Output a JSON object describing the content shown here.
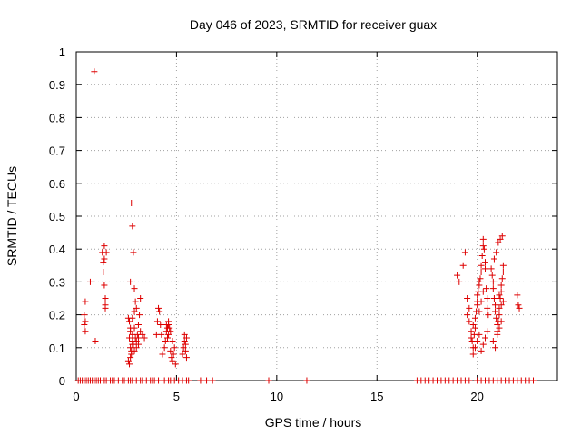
{
  "chart_data": {
    "type": "scatter",
    "title": "Day 046 of 2023, SRMTID for receiver guax",
    "xlabel": "GPS time / hours",
    "ylabel": "SRMTID / TECUs",
    "xlim": [
      0,
      24
    ],
    "ylim": [
      0,
      1
    ],
    "xticks": [
      0,
      5,
      10,
      15,
      20
    ],
    "yticks": [
      0,
      0.1,
      0.2,
      0.3,
      0.4,
      0.5,
      0.6,
      0.7,
      0.8,
      0.9,
      1
    ],
    "ytick_labels": [
      "0",
      "0.1",
      "0.2",
      "0.3",
      "0.4",
      "0.5",
      "0.6",
      "0.7",
      "0.8",
      "0.9",
      "1"
    ],
    "grid": true,
    "marker": "+",
    "color": "#dd0000",
    "series": [
      {
        "name": "SRMTID",
        "x": [
          0.1,
          0.2,
          0.3,
          0.4,
          0.5,
          0.6,
          0.7,
          0.8,
          0.9,
          1.0,
          1.1,
          1.2,
          1.4,
          1.5,
          1.7,
          1.8,
          1.9,
          2.1,
          2.3,
          2.4,
          2.6,
          2.7,
          2.8,
          3.0,
          3.2,
          3.3,
          3.5,
          3.7,
          3.8,
          3.9,
          4.1,
          4.4,
          4.6,
          4.7,
          4.9,
          5.1,
          5.3,
          5.5,
          5.6,
          6.2,
          6.5,
          6.8,
          9.6,
          11.5,
          17.0,
          17.2,
          17.4,
          17.6,
          17.8,
          18.0,
          18.2,
          18.4,
          18.6,
          18.8,
          19.0,
          19.2,
          19.4,
          19.6,
          20.0,
          20.2,
          20.4,
          20.6,
          20.8,
          21.0,
          21.2,
          21.4,
          21.6,
          21.8,
          22.0,
          22.2,
          22.4,
          22.6,
          22.8,
          0.4,
          0.4,
          0.45,
          0.45,
          0.45,
          0.7,
          0.9,
          0.95,
          1.3,
          1.35,
          1.4,
          1.4,
          1.45,
          1.45,
          1.5,
          1.35,
          1.4,
          1.45,
          2.6,
          2.65,
          2.7,
          2.7,
          2.75,
          2.8,
          2.8,
          2.85,
          2.9,
          2.9,
          2.95,
          3.0,
          3.0,
          3.05,
          3.1,
          3.1,
          3.2,
          3.3,
          3.4,
          2.65,
          2.7,
          2.75,
          2.8,
          2.85,
          2.9,
          2.95,
          3.0,
          2.6,
          2.65,
          2.7,
          2.75,
          2.8,
          3.1,
          3.15,
          3.2,
          2.7,
          2.8,
          2.9,
          4.0,
          4.05,
          4.1,
          4.15,
          4.2,
          4.25,
          4.3,
          4.4,
          4.45,
          4.5,
          4.5,
          4.55,
          4.55,
          4.6,
          4.6,
          4.65,
          4.7,
          4.75,
          4.8,
          4.85,
          4.9,
          4.95,
          4.6,
          4.7,
          4.8,
          5.3,
          5.35,
          5.4,
          5.4,
          5.45,
          5.45,
          5.5,
          5.5,
          19.0,
          19.1,
          19.3,
          19.4,
          19.5,
          19.5,
          19.6,
          19.6,
          19.7,
          19.7,
          19.75,
          19.8,
          19.8,
          19.85,
          19.9,
          19.9,
          19.95,
          20.0,
          20.0,
          20.0,
          20.05,
          20.1,
          20.1,
          20.15,
          20.2,
          20.2,
          20.25,
          20.3,
          20.3,
          20.35,
          20.4,
          20.4,
          20.45,
          20.5,
          20.5,
          20.55,
          19.8,
          19.9,
          20.0,
          20.1,
          20.2,
          20.3,
          20.4,
          20.5,
          20.1,
          20.2,
          20.3,
          20.7,
          20.75,
          20.8,
          20.8,
          20.85,
          20.9,
          20.9,
          20.95,
          21.0,
          21.0,
          21.05,
          21.1,
          21.1,
          21.15,
          21.2,
          21.2,
          21.25,
          21.3,
          21.3,
          20.8,
          20.9,
          21.0,
          21.1,
          21.2,
          20.85,
          20.95,
          21.05,
          21.15,
          21.25,
          21.1,
          21.2,
          21.3,
          22.0,
          22.05,
          22.1
        ],
        "y": [
          0,
          0,
          0,
          0,
          0,
          0,
          0,
          0,
          0,
          0,
          0,
          0,
          0,
          0,
          0,
          0,
          0,
          0,
          0,
          0,
          0,
          0,
          0,
          0,
          0,
          0,
          0,
          0,
          0,
          0,
          0,
          0,
          0,
          0,
          0,
          0,
          0,
          0,
          0,
          0,
          0,
          0,
          0,
          0,
          0,
          0,
          0,
          0,
          0,
          0,
          0,
          0,
          0,
          0,
          0,
          0,
          0,
          0,
          0,
          0,
          0,
          0,
          0,
          0,
          0,
          0,
          0,
          0,
          0,
          0,
          0,
          0,
          0,
          0.17,
          0.2,
          0.24,
          0.18,
          0.15,
          0.3,
          0.94,
          0.12,
          0.39,
          0.36,
          0.41,
          0.29,
          0.22,
          0.25,
          0.39,
          0.33,
          0.37,
          0.23,
          0.19,
          0.13,
          0.1,
          0.15,
          0.08,
          0.12,
          0.14,
          0.11,
          0.09,
          0.16,
          0.13,
          0.1,
          0.12,
          0.14,
          0.11,
          0.13,
          0.15,
          0.14,
          0.13,
          0.18,
          0.3,
          0.54,
          0.47,
          0.39,
          0.28,
          0.24,
          0.22,
          0.06,
          0.05,
          0.07,
          0.09,
          0.11,
          0.17,
          0.2,
          0.25,
          0.16,
          0.19,
          0.21,
          0.14,
          0.18,
          0.22,
          0.21,
          0.17,
          0.14,
          0.08,
          0.1,
          0.12,
          0.15,
          0.17,
          0.16,
          0.13,
          0.14,
          0.18,
          0.16,
          0.09,
          0.07,
          0.06,
          0.08,
          0.1,
          0.05,
          0.17,
          0.15,
          0.12,
          0.08,
          0.1,
          0.12,
          0.14,
          0.09,
          0.11,
          0.13,
          0.07,
          0.32,
          0.3,
          0.35,
          0.39,
          0.25,
          0.2,
          0.22,
          0.18,
          0.15,
          0.13,
          0.12,
          0.1,
          0.17,
          0.14,
          0.16,
          0.19,
          0.21,
          0.23,
          0.24,
          0.26,
          0.27,
          0.29,
          0.3,
          0.31,
          0.33,
          0.35,
          0.38,
          0.41,
          0.43,
          0.4,
          0.36,
          0.34,
          0.28,
          0.25,
          0.22,
          0.2,
          0.08,
          0.1,
          0.12,
          0.14,
          0.09,
          0.11,
          0.13,
          0.15,
          0.21,
          0.24,
          0.27,
          0.34,
          0.32,
          0.3,
          0.28,
          0.25,
          0.23,
          0.21,
          0.19,
          0.17,
          0.15,
          0.18,
          0.2,
          0.22,
          0.25,
          0.27,
          0.29,
          0.31,
          0.33,
          0.35,
          0.12,
          0.1,
          0.14,
          0.16,
          0.18,
          0.37,
          0.39,
          0.42,
          0.43,
          0.44,
          0.26,
          0.23,
          0.24,
          0.26,
          0.23,
          0.22
        ]
      }
    ]
  }
}
